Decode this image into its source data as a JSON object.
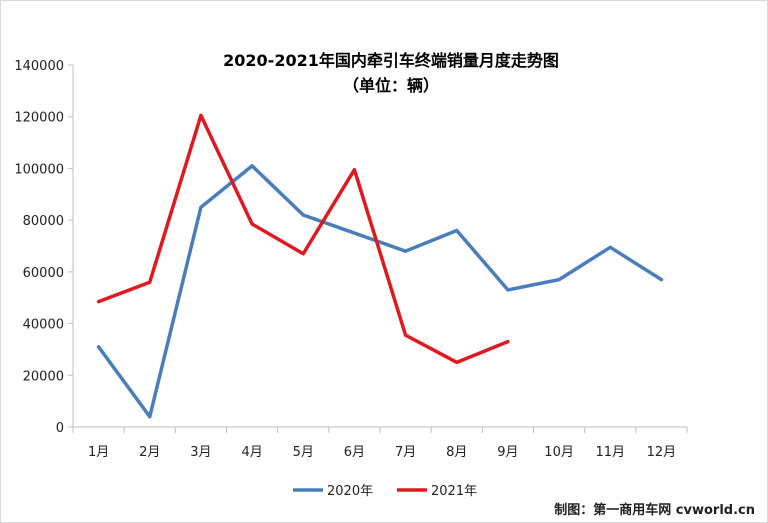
{
  "chart_data": {
    "type": "line",
    "title": "2020-2021年国内牵引车终端销量月度走势图",
    "subtitle": "（单位：辆）",
    "categories": [
      "1月",
      "2月",
      "3月",
      "4月",
      "5月",
      "6月",
      "7月",
      "8月",
      "9月",
      "10月",
      "11月",
      "12月"
    ],
    "series": [
      {
        "name": "2020年",
        "color": "#4a7ebb",
        "values": [
          31000,
          4000,
          85000,
          101000,
          82000,
          75000,
          68000,
          76000,
          53000,
          57000,
          69500,
          57000
        ]
      },
      {
        "name": "2021年",
        "color": "#e0191f",
        "values": [
          48500,
          56000,
          120500,
          78500,
          67000,
          99500,
          35500,
          25000,
          33000,
          null,
          null,
          null
        ]
      }
    ],
    "ylim": [
      0,
      140000
    ],
    "yticks": [
      0,
      20000,
      40000,
      60000,
      80000,
      100000,
      120000,
      140000
    ],
    "grid": false,
    "legend_position": "bottom"
  },
  "credit": "制图：第一商用车网 cvworld.cn"
}
